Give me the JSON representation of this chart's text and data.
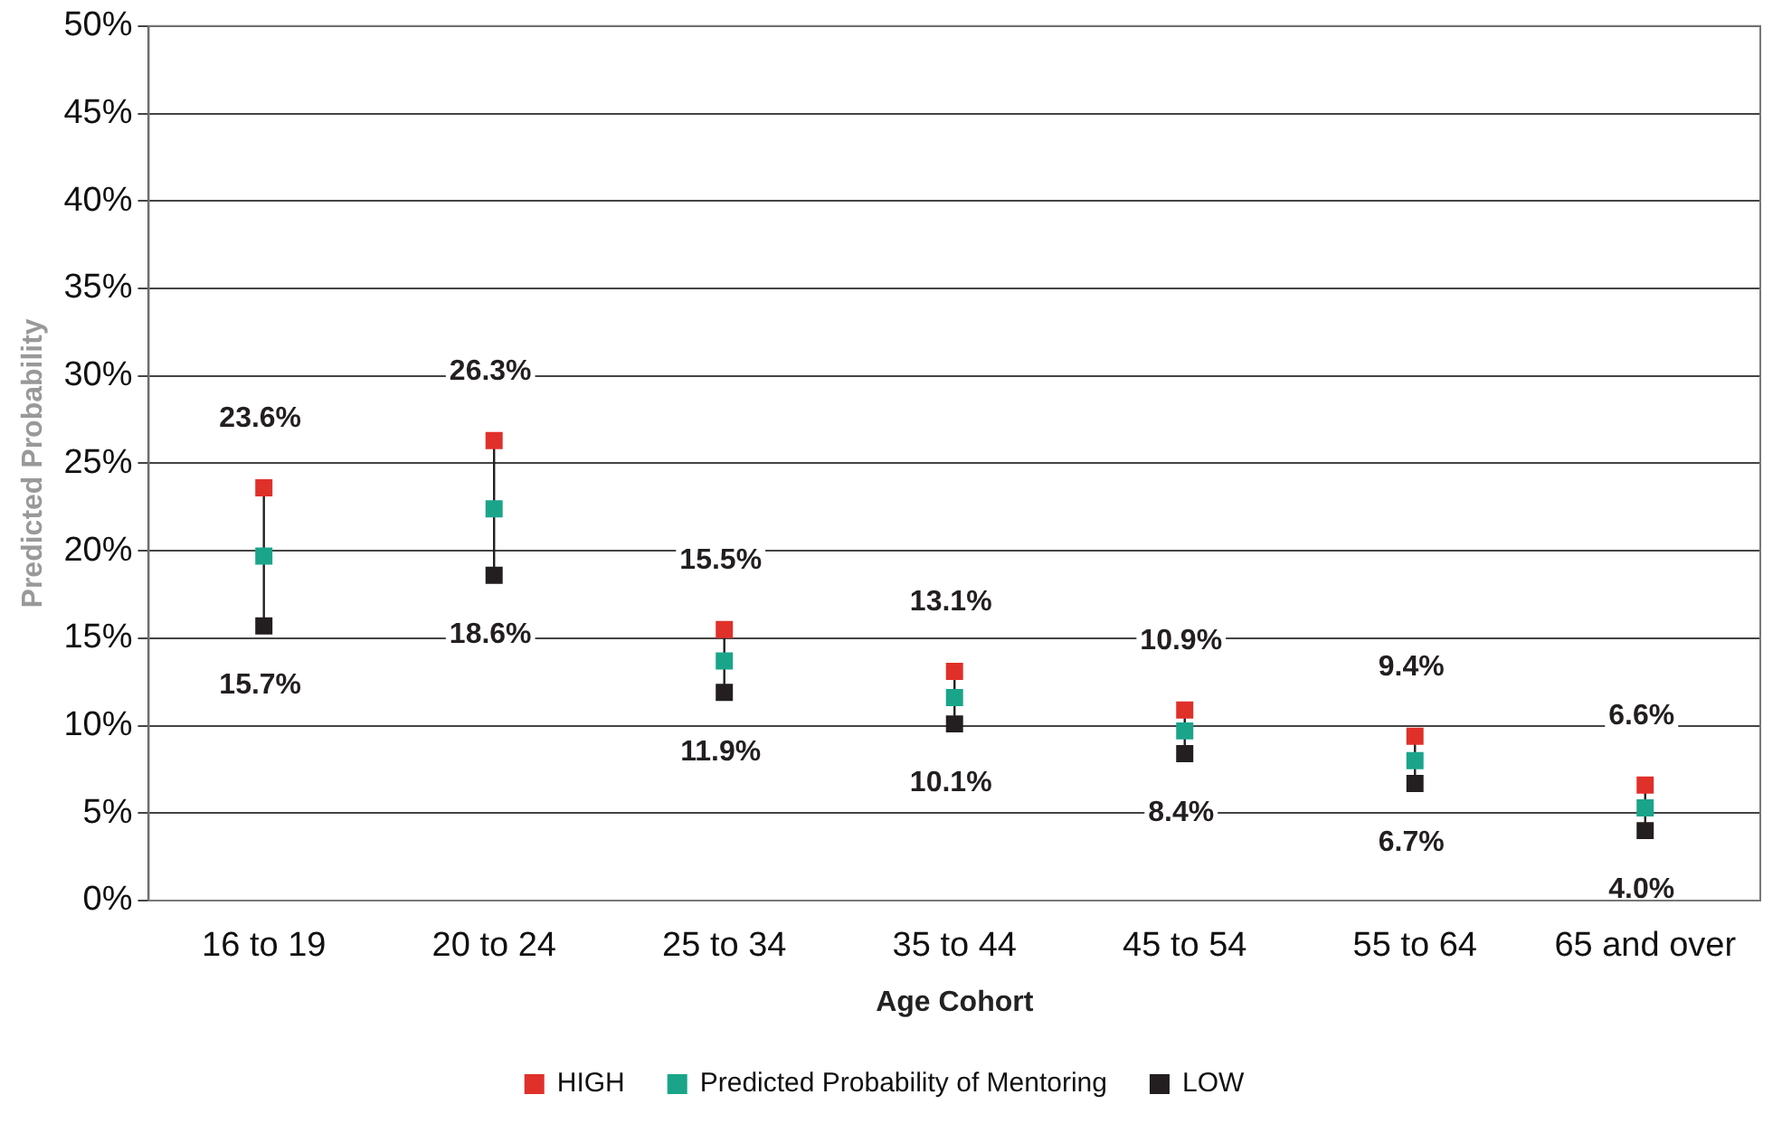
{
  "chart_data": {
    "type": "scatter",
    "xlabel": "Age Cohort",
    "ylabel": "Predicted Probability",
    "categories": [
      "16 to 19",
      "20 to 24",
      "25 to 34",
      "35 to 44",
      "45 to 54",
      "55 to 64",
      "65 and over"
    ],
    "series": [
      {
        "name": "HIGH",
        "color": "#e0302a",
        "values": [
          23.6,
          26.3,
          15.5,
          13.1,
          10.9,
          9.4,
          6.6
        ],
        "value_labels": [
          "23.6%",
          "26.3%",
          "15.5%",
          "13.1%",
          "10.9%",
          "9.4%",
          "6.6%"
        ]
      },
      {
        "name": "Predicted Probability of Mentoring",
        "color": "#1aa58a",
        "values": [
          19.7,
          22.4,
          13.7,
          11.6,
          9.7,
          8.0,
          5.3
        ]
      },
      {
        "name": "LOW",
        "color": "#231f20",
        "values": [
          15.7,
          18.6,
          11.9,
          10.1,
          8.4,
          6.7,
          4.0
        ],
        "value_labels": [
          "15.7%",
          "18.6%",
          "11.9%",
          "10.1%",
          "8.4%",
          "6.7%",
          "4.0%"
        ]
      }
    ],
    "ylim": [
      0,
      50
    ],
    "yticks": [
      {
        "value": 0,
        "label": "0%"
      },
      {
        "value": 5,
        "label": "5%"
      },
      {
        "value": 10,
        "label": "10%"
      },
      {
        "value": 15,
        "label": "15%"
      },
      {
        "value": 20,
        "label": "20%"
      },
      {
        "value": 25,
        "label": "25%"
      },
      {
        "value": 30,
        "label": "30%"
      },
      {
        "value": 35,
        "label": "35%"
      },
      {
        "value": 40,
        "label": "40%"
      },
      {
        "value": 45,
        "label": "45%"
      },
      {
        "value": 50,
        "label": "50%"
      }
    ],
    "grid": "y",
    "legend": "bottom",
    "marker": "square"
  }
}
